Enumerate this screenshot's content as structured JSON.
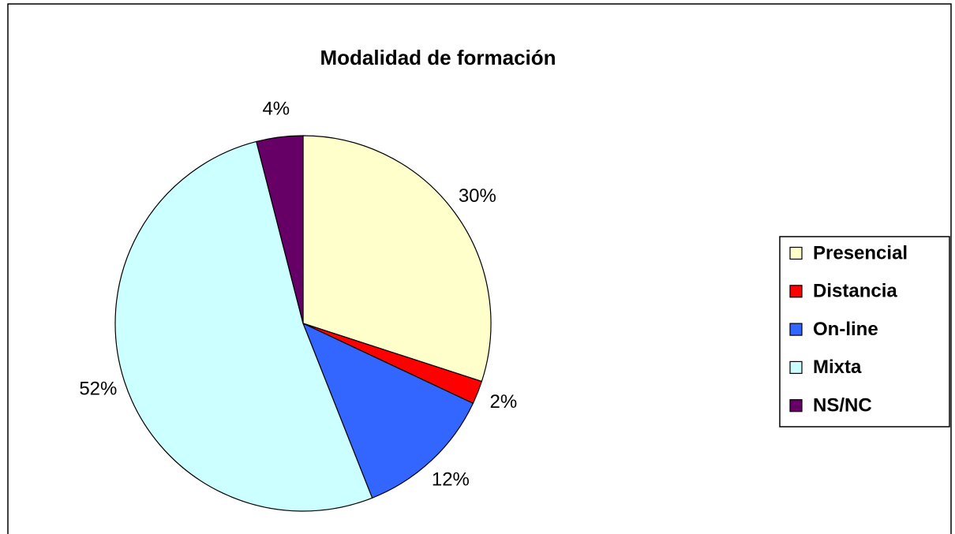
{
  "chart_data": {
    "type": "pie",
    "title": "Modalidad de formación",
    "categories": [
      "Presencial",
      "Distancia",
      "On-line",
      "Mixta",
      "NS/NC"
    ],
    "values": [
      30,
      2,
      12,
      52,
      4
    ],
    "value_labels": [
      "30%",
      "2%",
      "12%",
      "52%",
      "4%"
    ],
    "colors": [
      "#ffffcc",
      "#ff0000",
      "#3366ff",
      "#ccffff",
      "#660066"
    ],
    "legend": "right"
  }
}
